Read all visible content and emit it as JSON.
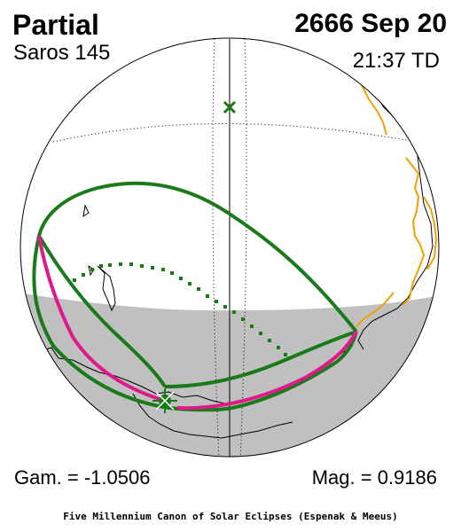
{
  "eclipse": {
    "type": "Partial",
    "saros": "Saros 145",
    "date": "2666 Sep 20",
    "time": "21:37 TD",
    "gamma": "Gam. = -1.0506",
    "magnitude": "Mag. = 0.9186"
  },
  "credit": "Five Millennium Canon of Solar Eclipses (Espenak & Meeus)",
  "colors": {
    "night_side": "#c0c0c0",
    "eclipse_limits": "#1a7a1a",
    "max_eclipse_curve": "#e0188c",
    "coastline_highlight": "#f0a000",
    "coastline": "#000000"
  },
  "markers": {
    "greatest_eclipse": "green-cross-marker",
    "sub_solar_point": "green-x-marker"
  }
}
